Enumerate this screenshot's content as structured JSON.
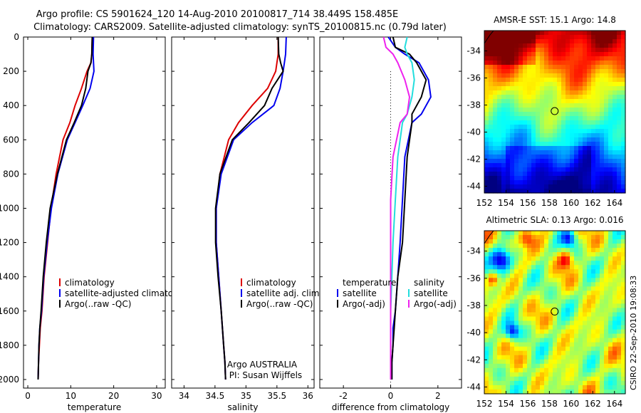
{
  "header": {
    "line1": "Argo profile: CS 5901624_120 14-Aug-2010 20100817_714 38.449S 158.485E",
    "line2": "Climatology: CARS2009. Satellite-adjusted climatology: synTS_20100815.nc (0.79d later)"
  },
  "colors": {
    "climatology": "#dd0000",
    "satellite": "#0000ee",
    "argo": "#000000",
    "sal_satellite": "#22dddd",
    "sal_argo": "#ee22ee"
  },
  "chart_data": [
    {
      "type": "line",
      "xlabel": "temperature",
      "xlim": [
        -1,
        32
      ],
      "ylim": [
        2050,
        0
      ],
      "xticks": [
        0,
        10,
        20,
        30
      ],
      "yticks": [
        0,
        200,
        400,
        600,
        800,
        1000,
        1200,
        1400,
        1600,
        1800,
        2000
      ],
      "legend": [
        "climatology",
        "satellite-adjusted climatology",
        "Argo(..raw -QC)"
      ],
      "series": [
        {
          "name": "climatology",
          "color": "#dd0000",
          "x": [
            15.0,
            14.9,
            14.7,
            13.8,
            12.5,
            11.0,
            9.8,
            8.2,
            6.6,
            5.4,
            4.6,
            3.8,
            3.3,
            2.9,
            2.7,
            2.5,
            2.4
          ],
          "y": [
            0,
            100,
            150,
            200,
            300,
            400,
            500,
            600,
            800,
            1000,
            1200,
            1400,
            1600,
            1700,
            1800,
            1900,
            2000
          ]
        },
        {
          "name": "satellite-adjusted climatology",
          "color": "#0000ee",
          "x": [
            15.3,
            15.2,
            15.3,
            15.4,
            14.5,
            12.8,
            11.0,
            9.2,
            7.0,
            5.5,
            4.5,
            3.7,
            3.2,
            2.8,
            2.6,
            2.5,
            2.4
          ],
          "y": [
            0,
            100,
            150,
            200,
            300,
            400,
            500,
            600,
            800,
            1000,
            1200,
            1400,
            1600,
            1700,
            1800,
            1900,
            2000
          ]
        },
        {
          "name": "Argo(..raw -QC)",
          "color": "#000000",
          "x": [
            15.0,
            14.9,
            14.7,
            14.0,
            13.5,
            12.5,
            10.8,
            9.0,
            6.9,
            5.2,
            4.3,
            3.6,
            3.1,
            2.8,
            2.6,
            2.5,
            2.4
          ],
          "y": [
            0,
            100,
            150,
            200,
            300,
            400,
            500,
            600,
            800,
            1000,
            1200,
            1400,
            1600,
            1700,
            1800,
            1900,
            2000
          ]
        }
      ]
    },
    {
      "type": "line",
      "xlabel": "salinity",
      "xlim": [
        33.8,
        36.1
      ],
      "ylim": [
        2050,
        0
      ],
      "xticks": [
        34,
        34.5,
        35,
        35.5,
        36
      ],
      "legend": [
        "climatology",
        "satellite adj. clim.",
        "Argo(..raw -QC)"
      ],
      "annotations": [
        "Argo AUSTRALIA",
        "PI: Susan Wijffels"
      ],
      "series": [
        {
          "name": "climatology",
          "color": "#dd0000",
          "x": [
            35.52,
            35.52,
            35.5,
            35.48,
            35.35,
            35.1,
            34.88,
            34.72,
            34.58,
            34.52,
            34.52,
            34.56,
            34.6,
            34.62,
            34.64,
            34.66,
            34.67
          ],
          "y": [
            0,
            100,
            150,
            200,
            300,
            400,
            500,
            600,
            800,
            1000,
            1200,
            1400,
            1600,
            1700,
            1800,
            1900,
            2000
          ]
        },
        {
          "name": "satellite adj. clim.",
          "color": "#0000ee",
          "x": [
            35.65,
            35.64,
            35.62,
            35.6,
            35.55,
            35.45,
            35.1,
            34.8,
            34.6,
            34.52,
            34.52,
            34.56,
            34.6,
            34.62,
            34.64,
            34.66,
            34.67
          ],
          "y": [
            0,
            100,
            150,
            200,
            300,
            400,
            500,
            600,
            800,
            1000,
            1200,
            1400,
            1600,
            1700,
            1800,
            1900,
            2000
          ]
        },
        {
          "name": "Argo(..raw -QC)",
          "color": "#000000",
          "x": [
            35.52,
            35.53,
            35.56,
            35.6,
            35.42,
            35.3,
            35.05,
            34.78,
            34.58,
            34.51,
            34.51,
            34.55,
            34.6,
            34.62,
            34.64,
            34.66,
            34.67
          ],
          "y": [
            0,
            100,
            150,
            200,
            300,
            400,
            500,
            600,
            800,
            1000,
            1200,
            1400,
            1600,
            1700,
            1800,
            1900,
            2000
          ]
        }
      ]
    },
    {
      "type": "line",
      "xlabel": "difference from climatology",
      "xlim": [
        -3,
        3
      ],
      "ylim": [
        2050,
        0
      ],
      "xticks": [
        -2,
        0,
        2
      ],
      "legend_temperature": [
        "temperature",
        "satellite",
        "Argo(-adj)"
      ],
      "legend_salinity": [
        "salinity",
        "satellite",
        "Argo(-adj)"
      ],
      "zero_line": "dotted",
      "series": [
        {
          "name": "temperature satellite",
          "color": "#0000ee",
          "x": [
            -0.1,
            0.2,
            0.6,
            1.2,
            1.6,
            1.7,
            1.3,
            0.9,
            0.6,
            0.5,
            0.4,
            0.3,
            0.2,
            0.1,
            0.1,
            0.05,
            0.05
          ],
          "y": [
            0,
            60,
            100,
            150,
            250,
            350,
            450,
            500,
            700,
            950,
            1200,
            1400,
            1600,
            1700,
            1800,
            1900,
            2000
          ]
        },
        {
          "name": "temperature Argo(-adj)",
          "color": "#000000",
          "x": [
            0.1,
            0.2,
            0.8,
            1.1,
            1.5,
            1.3,
            0.9,
            0.9,
            0.7,
            0.6,
            0.5,
            0.3,
            0.2,
            0.15,
            0.1,
            0.05,
            0.05
          ],
          "y": [
            0,
            60,
            100,
            150,
            250,
            350,
            450,
            500,
            700,
            950,
            1200,
            1400,
            1600,
            1700,
            1800,
            1900,
            2000
          ]
        },
        {
          "name": "salinity satellite",
          "color": "#22dddd",
          "x": [
            0.7,
            0.6,
            0.7,
            0.9,
            1.0,
            0.9,
            0.7,
            0.5,
            0.3,
            0.2,
            0.1,
            0.05,
            0.0,
            0.0,
            0.0,
            0.0,
            0.0
          ],
          "y": [
            0,
            60,
            100,
            150,
            250,
            350,
            450,
            500,
            700,
            950,
            1200,
            1400,
            1600,
            1700,
            1800,
            1900,
            2000
          ]
        },
        {
          "name": "salinity Argo(-adj)",
          "color": "#ee22ee",
          "x": [
            -0.3,
            -0.2,
            0.1,
            0.3,
            0.6,
            0.8,
            0.7,
            0.4,
            0.1,
            0.0,
            0.0,
            0.0,
            0.0,
            0.0,
            0.0,
            0.0,
            0.0
          ],
          "y": [
            0,
            60,
            100,
            150,
            250,
            350,
            450,
            500,
            700,
            950,
            1200,
            1400,
            1600,
            1700,
            1800,
            1900,
            2000
          ]
        }
      ]
    },
    {
      "type": "heatmap",
      "title": "AMSR-E SST: 15.1 Argo: 14.8",
      "xlim": [
        152,
        165
      ],
      "ylim": [
        -44.5,
        -32.5
      ],
      "xticks": [
        152,
        154,
        156,
        158,
        160,
        162,
        164
      ],
      "yticks": [
        -34,
        -36,
        -38,
        -40,
        -42,
        -44
      ],
      "marker": {
        "lon": 158.485,
        "lat": -38.449
      },
      "field": "temperature"
    },
    {
      "type": "heatmap",
      "title": "Altimetric SLA: 0.13 Argo: 0.016",
      "xlim": [
        152,
        165
      ],
      "ylim": [
        -44.5,
        -32.5
      ],
      "xticks": [
        152,
        154,
        156,
        158,
        160,
        162,
        164
      ],
      "yticks": [
        -34,
        -36,
        -38,
        -40,
        -42,
        -44
      ],
      "marker": {
        "lon": 158.485,
        "lat": -38.449
      },
      "field": "sla"
    }
  ],
  "footer": {
    "stamp": "CSIRO 22-Sep-2010 19:08:33"
  }
}
